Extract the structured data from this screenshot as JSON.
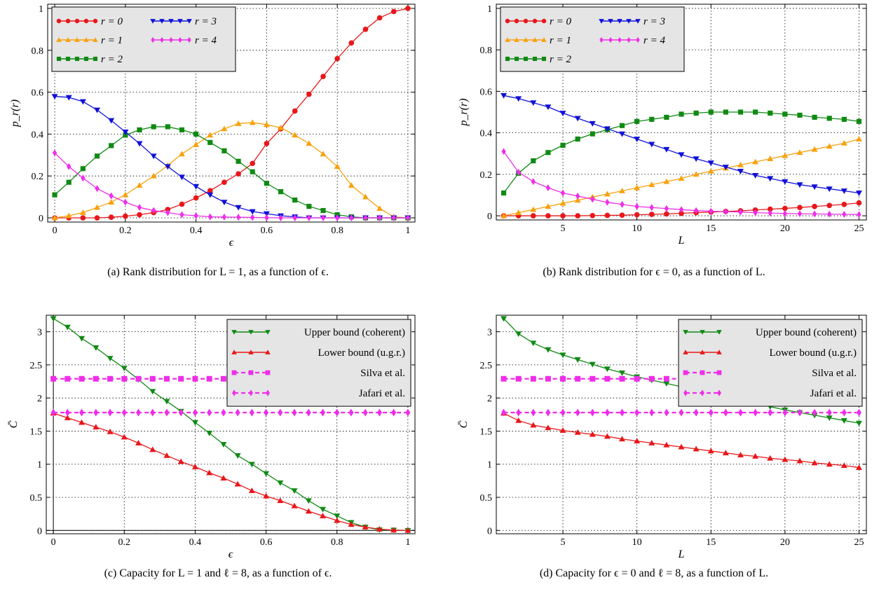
{
  "captions": {
    "a": "(a) Rank distribution for L = 1, as a function of ϵ.",
    "b": "(b) Rank distribution for ϵ = 0, as a function of L.",
    "c": "(c) Capacity for L = 1 and ℓ = 8, as a function of ϵ.",
    "d": "(d) Capacity for ϵ = 0 and ℓ = 8, as a function of L."
  },
  "chart_data": [
    {
      "id": "a",
      "type": "line",
      "xlabel": "ϵ",
      "ylabel": "p_r(r)",
      "xlim": [
        -0.02,
        1.02
      ],
      "ylim": [
        -0.02,
        1.02
      ],
      "xticks": [
        0,
        0.2,
        0.4,
        0.6,
        0.8,
        1
      ],
      "xticklabels": [
        "0",
        "0.2",
        "0.4",
        "0.6",
        "0.8",
        "1"
      ],
      "yticks": [
        0,
        0.2,
        0.4,
        0.6,
        0.8,
        1
      ],
      "yticklabels": [
        "0",
        "0.2",
        "0.4",
        "0.6",
        "0.8",
        "1"
      ],
      "grid": true,
      "legend": {
        "position": "top-left",
        "columns": 2
      },
      "x": [
        0,
        0.04,
        0.08,
        0.12,
        0.16,
        0.2,
        0.24,
        0.28,
        0.32,
        0.36,
        0.4,
        0.44,
        0.48,
        0.52,
        0.56,
        0.6,
        0.64,
        0.68,
        0.72,
        0.76,
        0.8,
        0.84,
        0.88,
        0.92,
        0.96,
        1
      ],
      "series": [
        {
          "name": "r = 0",
          "color": "#e8171a",
          "marker": "circle",
          "values": [
            0,
            0,
            0,
            0,
            0.003,
            0.008,
            0.015,
            0.025,
            0.04,
            0.065,
            0.095,
            0.13,
            0.17,
            0.21,
            0.26,
            0.355,
            0.425,
            0.51,
            0.59,
            0.675,
            0.76,
            0.835,
            0.9,
            0.955,
            0.985,
            1
          ]
        },
        {
          "name": "r = 1",
          "color": "#f7a20f",
          "marker": "triangle-up",
          "values": [
            0,
            0.01,
            0.025,
            0.05,
            0.075,
            0.11,
            0.155,
            0.2,
            0.25,
            0.305,
            0.35,
            0.395,
            0.425,
            0.45,
            0.455,
            0.445,
            0.43,
            0.395,
            0.355,
            0.305,
            0.245,
            0.155,
            0.1,
            0.045,
            0.005,
            0
          ]
        },
        {
          "name": "r = 2",
          "color": "#0f8a13",
          "marker": "square",
          "values": [
            0.11,
            0.17,
            0.235,
            0.295,
            0.345,
            0.395,
            0.42,
            0.435,
            0.435,
            0.42,
            0.4,
            0.36,
            0.32,
            0.27,
            0.22,
            0.165,
            0.125,
            0.085,
            0.055,
            0.035,
            0.015,
            0.005,
            0,
            0,
            0,
            0
          ]
        },
        {
          "name": "r = 3",
          "color": "#1010d8",
          "marker": "triangle-down",
          "values": [
            0.58,
            0.575,
            0.555,
            0.515,
            0.465,
            0.41,
            0.355,
            0.295,
            0.245,
            0.195,
            0.15,
            0.11,
            0.075,
            0.05,
            0.03,
            0.02,
            0.01,
            0.005,
            0,
            0,
            0,
            0,
            0,
            0,
            0,
            0
          ]
        },
        {
          "name": "r = 4",
          "color": "#ee2ee8",
          "marker": "diamond",
          "values": [
            0.31,
            0.245,
            0.19,
            0.14,
            0.105,
            0.075,
            0.05,
            0.035,
            0.025,
            0.015,
            0.01,
            0.005,
            0.004,
            0.003,
            0.002,
            0.001,
            0,
            0,
            0,
            0,
            0,
            0,
            0,
            0,
            0,
            0
          ]
        }
      ]
    },
    {
      "id": "b",
      "type": "line",
      "xlabel": "L",
      "ylabel": "p_r(r)",
      "xlim": [
        0.5,
        25.5
      ],
      "ylim": [
        -0.02,
        1.02
      ],
      "xticks": [
        5,
        10,
        15,
        20,
        25
      ],
      "xticklabels": [
        "5",
        "10",
        "15",
        "20",
        "25"
      ],
      "yticks": [
        0,
        0.2,
        0.4,
        0.6,
        0.8,
        1
      ],
      "yticklabels": [
        "0",
        "0.2",
        "0.4",
        "0.6",
        "0.8",
        "1"
      ],
      "grid": true,
      "legend": {
        "position": "top-left",
        "columns": 2
      },
      "x": [
        1,
        2,
        3,
        4,
        5,
        6,
        7,
        8,
        9,
        10,
        11,
        12,
        13,
        14,
        15,
        16,
        17,
        18,
        19,
        20,
        21,
        22,
        23,
        24,
        25
      ],
      "series": [
        {
          "name": "r = 0",
          "color": "#e8171a",
          "marker": "circle",
          "values": [
            0,
            0,
            0,
            0,
            0,
            0,
            0.001,
            0.002,
            0.003,
            0.005,
            0.007,
            0.009,
            0.012,
            0.015,
            0.018,
            0.021,
            0.024,
            0.028,
            0.032,
            0.036,
            0.04,
            0.045,
            0.05,
            0.055,
            0.062
          ]
        },
        {
          "name": "r = 1",
          "color": "#f7a20f",
          "marker": "triangle-up",
          "values": [
            0,
            0.015,
            0.03,
            0.045,
            0.06,
            0.075,
            0.09,
            0.105,
            0.12,
            0.135,
            0.15,
            0.165,
            0.18,
            0.2,
            0.215,
            0.23,
            0.245,
            0.26,
            0.275,
            0.29,
            0.305,
            0.32,
            0.335,
            0.35,
            0.37
          ]
        },
        {
          "name": "r = 2",
          "color": "#0f8a13",
          "marker": "square",
          "values": [
            0.11,
            0.205,
            0.265,
            0.305,
            0.34,
            0.37,
            0.395,
            0.415,
            0.435,
            0.455,
            0.465,
            0.475,
            0.49,
            0.495,
            0.5,
            0.5,
            0.5,
            0.5,
            0.495,
            0.49,
            0.485,
            0.475,
            0.47,
            0.465,
            0.455
          ]
        },
        {
          "name": "r = 3",
          "color": "#1010d8",
          "marker": "triangle-down",
          "values": [
            0.58,
            0.565,
            0.545,
            0.525,
            0.495,
            0.47,
            0.445,
            0.42,
            0.395,
            0.37,
            0.345,
            0.32,
            0.295,
            0.275,
            0.255,
            0.235,
            0.215,
            0.195,
            0.18,
            0.165,
            0.15,
            0.14,
            0.13,
            0.12,
            0.11
          ]
        },
        {
          "name": "r = 4",
          "color": "#ee2ee8",
          "marker": "diamond",
          "values": [
            0.31,
            0.21,
            0.165,
            0.135,
            0.11,
            0.095,
            0.08,
            0.065,
            0.055,
            0.045,
            0.04,
            0.035,
            0.03,
            0.025,
            0.022,
            0.02,
            0.018,
            0.015,
            0.013,
            0.011,
            0.01,
            0.009,
            0.008,
            0.007,
            0.006
          ]
        }
      ]
    },
    {
      "id": "c",
      "type": "line",
      "xlabel": "ϵ",
      "ylabel": "C̄",
      "xlim": [
        -0.02,
        1.02
      ],
      "ylim": [
        -0.05,
        3.25
      ],
      "xticks": [
        0,
        0.2,
        0.4,
        0.6,
        0.8,
        1
      ],
      "xticklabels": [
        "0",
        "0.2",
        "0.4",
        "0.6",
        "0.8",
        "1"
      ],
      "yticks": [
        0,
        0.5,
        1,
        1.5,
        2,
        2.5,
        3
      ],
      "yticklabels": [
        "0",
        "0.5",
        "1",
        "1.5",
        "2",
        "2.5",
        "3"
      ],
      "grid": true,
      "legend": {
        "position": "top-right",
        "columns": 1
      },
      "x": [
        0,
        0.04,
        0.08,
        0.12,
        0.16,
        0.2,
        0.24,
        0.28,
        0.32,
        0.36,
        0.4,
        0.44,
        0.48,
        0.52,
        0.56,
        0.6,
        0.64,
        0.68,
        0.72,
        0.76,
        0.8,
        0.84,
        0.88,
        0.92,
        0.96,
        1
      ],
      "series": [
        {
          "name": "Upper bound (coherent)",
          "color": "#0f8a13",
          "marker": "triangle-down",
          "dash": false,
          "values": [
            3.2,
            3.07,
            2.9,
            2.76,
            2.6,
            2.45,
            2.28,
            2.1,
            1.95,
            1.8,
            1.63,
            1.47,
            1.3,
            1.13,
            1.0,
            0.86,
            0.72,
            0.6,
            0.45,
            0.32,
            0.22,
            0.12,
            0.05,
            0.01,
            0.005,
            0
          ]
        },
        {
          "name": "Lower bound (u.g.r.)",
          "color": "#e8171a",
          "marker": "triangle-up",
          "dash": false,
          "values": [
            1.77,
            1.7,
            1.63,
            1.56,
            1.49,
            1.41,
            1.32,
            1.22,
            1.13,
            1.04,
            0.96,
            0.87,
            0.79,
            0.7,
            0.6,
            0.52,
            0.45,
            0.37,
            0.29,
            0.22,
            0.15,
            0.09,
            0.05,
            0.02,
            0.005,
            0
          ]
        },
        {
          "name": "Silva et al.",
          "color": "#ee2ee8",
          "marker": "square",
          "dash": true,
          "values": [
            2.29,
            2.29,
            2.29,
            2.29,
            2.29,
            2.29,
            2.29,
            2.29,
            2.29,
            2.29,
            2.29,
            2.29,
            2.29,
            2.29,
            2.29,
            2.29,
            2.29,
            2.29,
            2.29,
            2.29,
            2.29,
            2.29,
            2.29,
            2.29,
            2.29,
            2.29
          ]
        },
        {
          "name": "Jafari et al.",
          "color": "#ee2ee8",
          "marker": "diamond",
          "dash": true,
          "values": [
            1.78,
            1.78,
            1.78,
            1.78,
            1.78,
            1.78,
            1.78,
            1.78,
            1.78,
            1.78,
            1.78,
            1.78,
            1.78,
            1.78,
            1.78,
            1.78,
            1.78,
            1.78,
            1.78,
            1.78,
            1.78,
            1.78,
            1.78,
            1.78,
            1.78,
            1.78
          ]
        }
      ]
    },
    {
      "id": "d",
      "type": "line",
      "xlabel": "L",
      "ylabel": "C̄",
      "xlim": [
        0.5,
        25.5
      ],
      "ylim": [
        -0.05,
        3.25
      ],
      "xticks": [
        5,
        10,
        15,
        20,
        25
      ],
      "xticklabels": [
        "5",
        "10",
        "15",
        "20",
        "25"
      ],
      "yticks": [
        0,
        0.5,
        1,
        1.5,
        2,
        2.5,
        3
      ],
      "yticklabels": [
        "0",
        "0.5",
        "1",
        "1.5",
        "2",
        "2.5",
        "3"
      ],
      "grid": true,
      "legend": {
        "position": "top-right",
        "columns": 1
      },
      "x": [
        1,
        2,
        3,
        4,
        5,
        6,
        7,
        8,
        9,
        10,
        11,
        12,
        13,
        14,
        15,
        16,
        17,
        18,
        19,
        20,
        21,
        22,
        23,
        24,
        25
      ],
      "series": [
        {
          "name": "Upper bound (coherent)",
          "color": "#0f8a13",
          "marker": "triangle-down",
          "dash": false,
          "values": [
            3.2,
            2.97,
            2.83,
            2.73,
            2.65,
            2.58,
            2.51,
            2.44,
            2.38,
            2.32,
            2.27,
            2.22,
            2.17,
            2.12,
            2.07,
            2.02,
            1.97,
            1.92,
            1.87,
            1.82,
            1.78,
            1.74,
            1.7,
            1.66,
            1.62
          ]
        },
        {
          "name": "Lower bound (u.g.r.)",
          "color": "#e8171a",
          "marker": "triangle-up",
          "dash": false,
          "values": [
            1.77,
            1.66,
            1.59,
            1.55,
            1.51,
            1.48,
            1.45,
            1.42,
            1.38,
            1.35,
            1.32,
            1.29,
            1.26,
            1.23,
            1.2,
            1.17,
            1.14,
            1.12,
            1.09,
            1.07,
            1.05,
            1.02,
            1.0,
            0.98,
            0.95
          ]
        },
        {
          "name": "Silva et al.",
          "color": "#ee2ee8",
          "marker": "square",
          "dash": true,
          "values": [
            2.29,
            2.29,
            2.29,
            2.29,
            2.29,
            2.29,
            2.29,
            2.29,
            2.29,
            2.29,
            2.29,
            2.29,
            2.29,
            2.29,
            2.29,
            2.29,
            2.29,
            2.29,
            2.29,
            2.29,
            2.29,
            2.29,
            2.29,
            2.29,
            2.29
          ]
        },
        {
          "name": "Jafari et al.",
          "color": "#ee2ee8",
          "marker": "diamond",
          "dash": true,
          "values": [
            1.78,
            1.78,
            1.78,
            1.78,
            1.78,
            1.78,
            1.78,
            1.78,
            1.78,
            1.78,
            1.78,
            1.78,
            1.78,
            1.78,
            1.78,
            1.78,
            1.78,
            1.78,
            1.78,
            1.78,
            1.78,
            1.78,
            1.78,
            1.78,
            1.78
          ]
        }
      ]
    }
  ]
}
